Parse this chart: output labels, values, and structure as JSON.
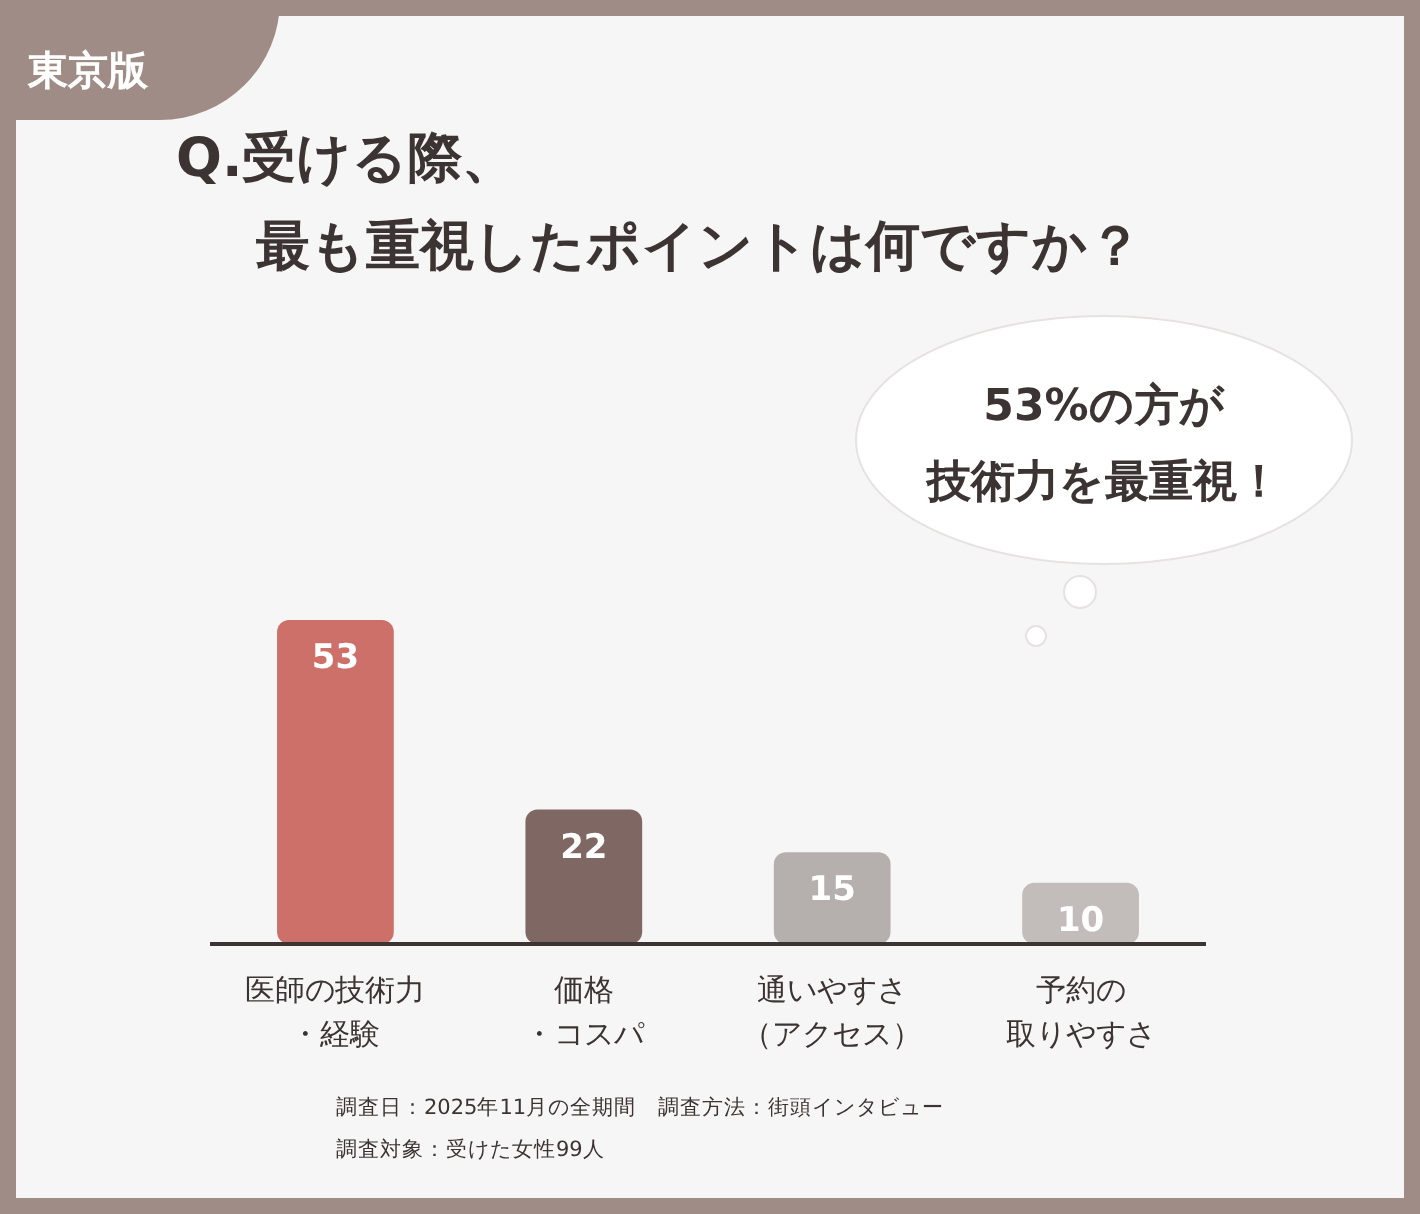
{
  "chart_data": {
    "type": "bar",
    "title": "Q.受ける際、最も重視したポイントは何ですか？",
    "categories": [
      "医師の技術力・経験",
      "価格・コスパ",
      "通いやすさ（アクセス）",
      "予約の取りやすさ"
    ],
    "values": [
      53,
      22,
      15,
      10
    ],
    "colors": [
      "#cd706a",
      "#7f6763",
      "#b5b0ae",
      "#c2bdbb"
    ],
    "tick_labels": "x",
    "data_labels": true,
    "annotations": [
      "東京版",
      "53%の方が",
      "技術力を最重視！",
      "調査日：2025年11月の全期間　調査方法：街頭インタビュー",
      "調査対象：受けた女性99人"
    ]
  }
}
